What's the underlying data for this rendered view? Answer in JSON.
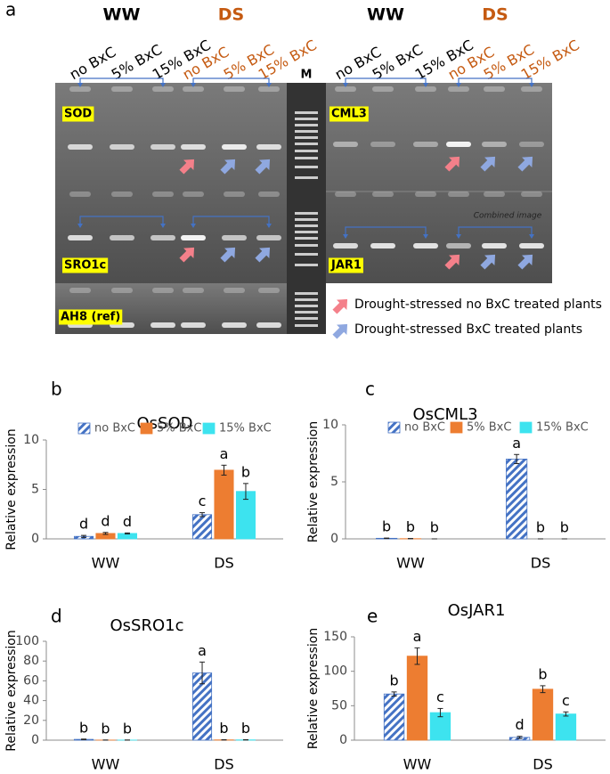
{
  "gel": {
    "panel": "a",
    "groups": [
      {
        "label": "WW",
        "color": "#000000",
        "lanes": [
          "no BxC",
          "5% BxC",
          "15% BxC"
        ]
      },
      {
        "label": "DS",
        "color": "#c55a11",
        "lanes": [
          "no BxC",
          "5% BxC",
          "15% BxC"
        ]
      },
      {
        "label": "WW",
        "color": "#000000",
        "lanes": [
          "no BxC",
          "5% BxC",
          "15% BxC"
        ]
      },
      {
        "label": "DS",
        "color": "#c55a11",
        "lanes": [
          "no BxC",
          "5% BxC",
          "15% BxC"
        ]
      }
    ],
    "marker": "M",
    "genes": [
      "SOD",
      "CML3",
      "SRO1c",
      "JAR1",
      "AH8 (ref)"
    ],
    "note": "Combined image",
    "legend": [
      {
        "label": "Drought-stressed no BxC treated plants",
        "color": "#f4808a"
      },
      {
        "label": "Drought-stressed BxC treated plants",
        "color": "#8fa8e0"
      }
    ]
  },
  "chart_data": [
    {
      "type": "bar",
      "panel": "b",
      "title": "OsSOD",
      "ylabel": "Relative expression",
      "categories": [
        "WW",
        "DS"
      ],
      "ylim": [
        0,
        10
      ],
      "yticks": [
        0,
        5,
        10
      ],
      "legend": "top",
      "series": [
        {
          "name": "no BxC",
          "color": "#4472c4",
          "fill_style": "hatch",
          "values": [
            0.25,
            2.45
          ],
          "errors": [
            0.1,
            0.2
          ],
          "sig_letters": [
            "d",
            "c"
          ]
        },
        {
          "name": "5% BxC",
          "color": "#ed7d31",
          "values": [
            0.55,
            6.95
          ],
          "errors": [
            0.1,
            0.5
          ],
          "sig_letters": [
            "d",
            "a"
          ]
        },
        {
          "name": "15% BxC",
          "color": "#3de3ef",
          "values": [
            0.55,
            4.8
          ],
          "errors": [
            0.05,
            0.8
          ],
          "sig_letters": [
            "d",
            "b"
          ]
        }
      ]
    },
    {
      "type": "bar",
      "panel": "c",
      "title": "OsCML3",
      "ylabel": "Relative expression",
      "categories": [
        "WW",
        "DS"
      ],
      "ylim": [
        0,
        10
      ],
      "yticks": [
        0,
        5,
        10
      ],
      "legend": "top",
      "series": [
        {
          "name": "no BxC",
          "color": "#4472c4",
          "fill_style": "hatch",
          "values": [
            0.05,
            7.0
          ],
          "errors": [
            0.02,
            0.4
          ],
          "sig_letters": [
            "b",
            "a"
          ]
        },
        {
          "name": "5% BxC",
          "color": "#ed7d31",
          "values": [
            0.02,
            0
          ],
          "errors": [
            0.01,
            0
          ],
          "sig_letters": [
            "b",
            "b"
          ]
        },
        {
          "name": "15% BxC",
          "color": "#3de3ef",
          "values": [
            0,
            0
          ],
          "errors": [
            0,
            0
          ],
          "sig_letters": [
            "b",
            "b"
          ]
        }
      ]
    },
    {
      "type": "bar",
      "panel": "d",
      "title": "OsSRO1c",
      "ylabel": "Relative expression",
      "categories": [
        "WW",
        "DS"
      ],
      "ylim": [
        0,
        100
      ],
      "yticks": [
        0,
        20,
        40,
        60,
        80,
        100
      ],
      "series": [
        {
          "color": "#4472c4",
          "fill_style": "hatch",
          "values": [
            0.8,
            68
          ],
          "errors": [
            0.3,
            11
          ],
          "sig_letters": [
            "b",
            "a"
          ]
        },
        {
          "color": "#ed7d31",
          "values": [
            0.1,
            0.3
          ],
          "errors": [
            0.05,
            0.1
          ],
          "sig_letters": [
            "b",
            "b"
          ]
        },
        {
          "color": "#3de3ef",
          "values": [
            0.1,
            0.3
          ],
          "errors": [
            0.05,
            0.1
          ],
          "sig_letters": [
            "b",
            "b"
          ]
        }
      ]
    },
    {
      "type": "bar",
      "panel": "e",
      "title": "OsJAR1",
      "ylabel": "Relative expression",
      "categories": [
        "WW",
        "DS"
      ],
      "ylim": [
        0,
        150
      ],
      "yticks": [
        0,
        50,
        100,
        150
      ],
      "series": [
        {
          "color": "#4472c4",
          "fill_style": "hatch",
          "values": [
            67,
            4
          ],
          "errors": [
            3,
            1.5
          ],
          "sig_letters": [
            "b",
            "d"
          ]
        },
        {
          "color": "#ed7d31",
          "values": [
            122,
            74
          ],
          "errors": [
            12,
            5
          ],
          "sig_letters": [
            "a",
            "b"
          ]
        },
        {
          "color": "#3de3ef",
          "values": [
            40,
            38
          ],
          "errors": [
            6,
            3
          ],
          "sig_letters": [
            "c",
            "c"
          ]
        }
      ]
    }
  ]
}
